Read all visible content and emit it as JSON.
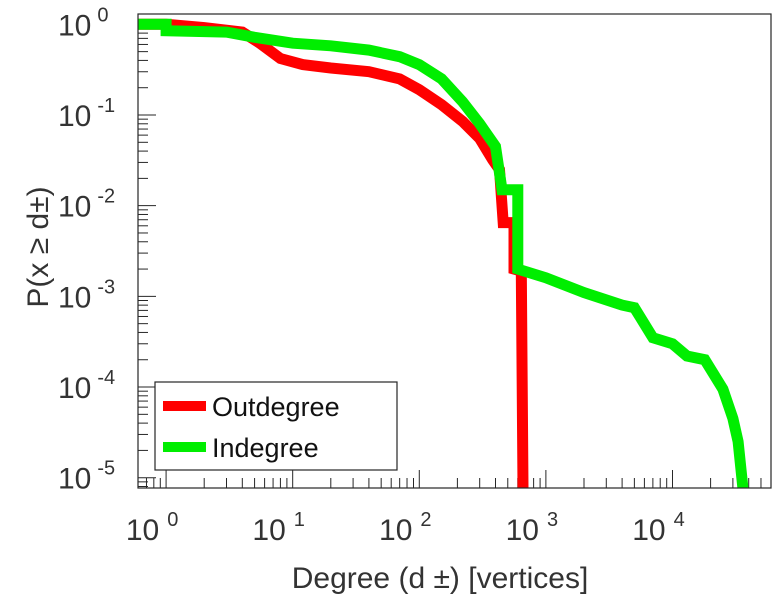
{
  "chart_data": {
    "type": "line",
    "xscale": "log",
    "yscale": "log",
    "xlim": [
      0.6,
      60000
    ],
    "ylim": [
      7.7e-06,
      1.3
    ],
    "xlabel": "Degree (d ±) [vertices]",
    "ylabel": "P(x ≥ d±)",
    "x_ticks": [
      {
        "value": 1,
        "base": "10",
        "exp": "0"
      },
      {
        "value": 10,
        "base": "10",
        "exp": "1"
      },
      {
        "value": 100,
        "base": "10",
        "exp": "2"
      },
      {
        "value": 1000,
        "base": "10",
        "exp": "3"
      },
      {
        "value": 10000,
        "base": "10",
        "exp": "4"
      }
    ],
    "y_ticks": [
      {
        "value": 1,
        "base": "10",
        "exp": "0"
      },
      {
        "value": 0.1,
        "base": "10",
        "exp": "-1"
      },
      {
        "value": 0.01,
        "base": "10",
        "exp": "-2"
      },
      {
        "value": 0.001,
        "base": "10",
        "exp": "-3"
      },
      {
        "value": 0.0001,
        "base": "10",
        "exp": "-4"
      },
      {
        "value": 1e-05,
        "base": "10",
        "exp": "-5"
      }
    ],
    "legend": {
      "position": "bottom-left"
    },
    "series": [
      {
        "name": "Outdegree",
        "color": "#ff0000",
        "points": [
          [
            0.6,
            1.0
          ],
          [
            1,
            1.0
          ],
          [
            2,
            0.92
          ],
          [
            4,
            0.82
          ],
          [
            5.5,
            0.62
          ],
          [
            8,
            0.42
          ],
          [
            12,
            0.36
          ],
          [
            20,
            0.33
          ],
          [
            40,
            0.3
          ],
          [
            70,
            0.25
          ],
          [
            100,
            0.19
          ],
          [
            150,
            0.13
          ],
          [
            220,
            0.085
          ],
          [
            300,
            0.055
          ],
          [
            380,
            0.032
          ],
          [
            430,
            0.025
          ],
          [
            460,
            0.0065
          ],
          [
            560,
            0.0065
          ],
          [
            560,
            0.002
          ],
          [
            640,
            0.0019
          ],
          [
            660,
            7.7e-06
          ]
        ]
      },
      {
        "name": "Indegree",
        "color": "#00ee00",
        "points": [
          [
            0.6,
            1.0
          ],
          [
            1,
            1.0
          ],
          [
            1,
            0.85
          ],
          [
            3,
            0.82
          ],
          [
            5,
            0.72
          ],
          [
            10,
            0.62
          ],
          [
            20,
            0.58
          ],
          [
            40,
            0.52
          ],
          [
            70,
            0.44
          ],
          [
            100,
            0.36
          ],
          [
            150,
            0.25
          ],
          [
            220,
            0.14
          ],
          [
            300,
            0.08
          ],
          [
            400,
            0.045
          ],
          [
            450,
            0.015
          ],
          [
            600,
            0.015
          ],
          [
            600,
            0.002
          ],
          [
            1000,
            0.0016
          ],
          [
            2000,
            0.0011
          ],
          [
            4000,
            0.0008
          ],
          [
            5000,
            0.00075
          ],
          [
            7000,
            0.00035
          ],
          [
            10000,
            0.0003
          ],
          [
            13000,
            0.00022
          ],
          [
            18000,
            0.0002
          ],
          [
            25000,
            9.5e-05
          ],
          [
            30000,
            4.5e-05
          ],
          [
            33000,
            2.5e-05
          ],
          [
            36000,
            7.7e-06
          ]
        ]
      }
    ]
  }
}
